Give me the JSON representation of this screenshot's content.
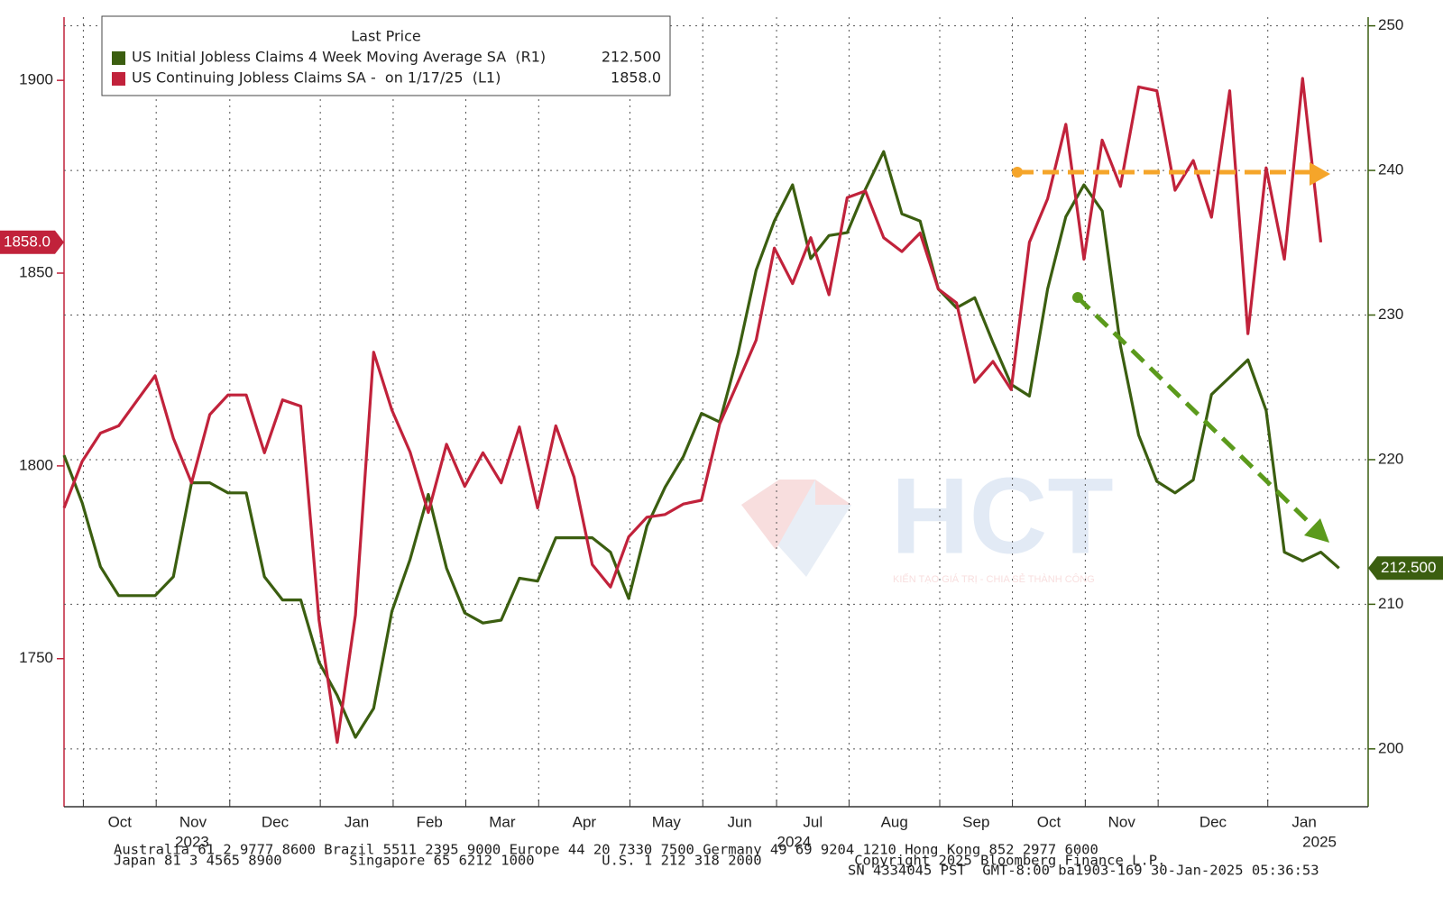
{
  "chart_data": {
    "type": "line",
    "legend_title": "Last Price",
    "categories": [
      null,
      null,
      null,
      null,
      null,
      null,
      null,
      null,
      null,
      null,
      null,
      null,
      null,
      null,
      null,
      null,
      null,
      null,
      null,
      null,
      null,
      null,
      null,
      null,
      null,
      null,
      null,
      null,
      null,
      null,
      null,
      null,
      null,
      null,
      null,
      null,
      null,
      null,
      null,
      null,
      null,
      null,
      null,
      null,
      null,
      null,
      null,
      null,
      null,
      null,
      null,
      null,
      null,
      null,
      null,
      null,
      null,
      null,
      null,
      null,
      null,
      null,
      null,
      null,
      null,
      null,
      null,
      null,
      null,
      null,
      null
    ],
    "xlim": [
      0,
      71.6
    ],
    "xticks": [
      {
        "value": 1.06,
        "label": "Oct"
      },
      {
        "value": 5.06,
        "label": "Nov"
      },
      {
        "value": 9.1,
        "label": "Dec"
      },
      {
        "value": 14.07,
        "label": "Jan"
      },
      {
        "value": 18.07,
        "label": "Feb"
      },
      {
        "value": 22.06,
        "label": "Mar"
      },
      {
        "value": 26.06,
        "label": "Apr"
      },
      {
        "value": 31.07,
        "label": "May"
      },
      {
        "value": 35.07,
        "label": "Jun"
      },
      {
        "value": 39.12,
        "label": "Jul"
      },
      {
        "value": 43.1,
        "label": "Aug"
      },
      {
        "value": 48.08,
        "label": "Sep"
      },
      {
        "value": 52.07,
        "label": "Oct"
      },
      {
        "value": 56.07,
        "label": "Nov"
      },
      {
        "value": 60.07,
        "label": "Dec"
      },
      {
        "value": 66.09,
        "label": "Jan"
      }
    ],
    "year_ticks": [
      {
        "value": 7.03,
        "label": "2023"
      },
      {
        "value": 40.08,
        "label": "2024"
      },
      {
        "value": 68.93,
        "label": "2025"
      }
    ],
    "ylim": [
      1711.6,
      1916.4
    ],
    "yticks": [
      1750,
      1800,
      1850,
      1900
    ],
    "y2lim": [
      196,
      250.6
    ],
    "y2ticks": [
      200,
      210,
      220,
      230,
      240,
      250
    ],
    "grid": true,
    "series": [
      {
        "name": "US Initial Jobless Claims 4 Week Moving Average SA  (R1)",
        "axis": "y2",
        "color": "#3b5e10",
        "last_price_label": "212.500",
        "values": [
          220.3,
          217.0,
          212.6,
          210.6,
          210.6,
          210.6,
          211.9,
          218.4,
          218.4,
          217.7,
          217.7,
          211.9,
          210.3,
          210.3,
          206.0,
          203.7,
          200.8,
          202.8,
          209.5,
          213.1,
          217.6,
          212.5,
          209.4,
          208.7,
          208.9,
          211.8,
          211.6,
          214.6,
          214.6,
          214.6,
          213.6,
          210.4,
          215.4,
          218.1,
          220.2,
          223.2,
          222.6,
          227.3,
          233.1,
          236.5,
          239.0,
          233.9,
          235.5,
          235.7,
          238.7,
          241.3,
          237.0,
          236.5,
          231.8,
          230.5,
          231.2,
          228.1,
          225.2,
          224.4,
          231.8,
          236.8,
          239.0,
          237.2,
          227.9,
          221.7,
          218.5,
          217.7,
          218.6,
          224.5,
          225.7,
          226.9,
          223.4,
          213.6,
          213.0,
          213.6,
          212.5
        ]
      },
      {
        "name": "US Continuing Jobless Claims SA -  on 1/17/25  (L1)",
        "axis": "y",
        "color": "#c1223b",
        "last_price_label": "1858.0",
        "values": [
          1789.1,
          1801.2,
          1808.5,
          1810.4,
          1816.9,
          1823.4,
          1807.2,
          1795.6,
          1813.3,
          1818.4,
          1818.4,
          1803.4,
          1817.1,
          1815.5,
          1760.1,
          1728.3,
          1761.3,
          1829.5,
          1814.5,
          1803.6,
          1787.9,
          1805.6,
          1794.7,
          1803.4,
          1795.6,
          1810.1,
          1789.1,
          1810.4,
          1797.1,
          1774.4,
          1768.6,
          1781.6,
          1786.7,
          1787.4,
          1790.1,
          1791.1,
          1810.9,
          1821.7,
          1832.6,
          1856.5,
          1847.3,
          1859.2,
          1844.4,
          1869.6,
          1871.3,
          1859.2,
          1855.6,
          1860.4,
          1845.9,
          1842.3,
          1821.7,
          1827.1,
          1819.8,
          1858.0,
          1869.3,
          1888.6,
          1853.6,
          1884.5,
          1872.5,
          1898.3,
          1897.3,
          1871.5,
          1879.2,
          1864.5,
          1897.3,
          1834.3,
          1877.3,
          1853.6,
          1900.5,
          1858.0,
          null
        ]
      }
    ],
    "watermark": {
      "logo": "HCT",
      "slogan": "KIẾN TẠO GIÁ TRỊ - CHIA SẺ THÀNH CÔNG"
    },
    "footer": [
      "Australia 61 2 9777 8600 Brazil 5511 2395 9000 Europe 44 20 7330 7500 Germany 49 69 9204 1210 Hong Kong 852 2977 6000",
      "Japan 81 3 4565 8900        Singapore 65 6212 1000        U.S. 1 212 318 2000           Copyright 2025 Bloomberg Finance L.P.",
      "SN 4334045 PST  GMT-8:00 ba1903-169 30-Jan-2025 05:36:53"
    ]
  }
}
